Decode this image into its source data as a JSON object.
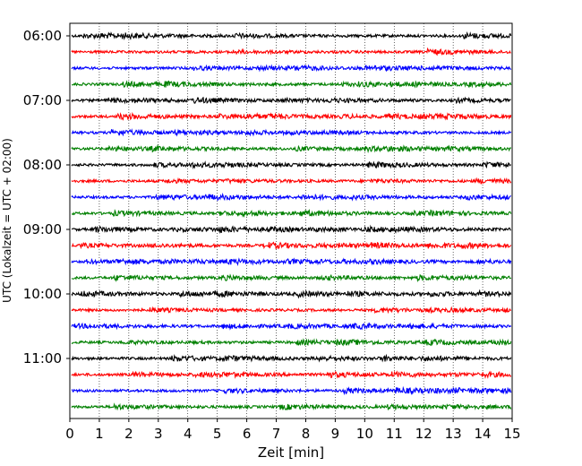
{
  "chart_data": {
    "type": "line",
    "title": "",
    "xlabel": "Zeit  [min]",
    "ylabel": "UTC (Lokalzeit = UTC + 02:00)",
    "xlim": [
      0,
      15
    ],
    "xticks": [
      0,
      1,
      2,
      3,
      4,
      5,
      6,
      7,
      8,
      9,
      10,
      11,
      12,
      13,
      14,
      15
    ],
    "yticks": [
      {
        "label": "06:00",
        "row": 0
      },
      {
        "label": "07:00",
        "row": 4
      },
      {
        "label": "08:00",
        "row": 8
      },
      {
        "label": "09:00",
        "row": 12
      },
      {
        "label": "10:00",
        "row": 16
      },
      {
        "label": "11:00",
        "row": 20
      }
    ],
    "grid": "vertical dotted lines at each minute",
    "trace_interval_minutes": 15,
    "first_trace_utc": "06:00",
    "trace_colors": [
      "#000000",
      "#ff0000",
      "#0000ff",
      "#008000"
    ],
    "series": [
      {
        "start": "06:00",
        "color": "#000000"
      },
      {
        "start": "06:15",
        "color": "#ff0000"
      },
      {
        "start": "06:30",
        "color": "#0000ff"
      },
      {
        "start": "06:45",
        "color": "#008000"
      },
      {
        "start": "07:00",
        "color": "#000000"
      },
      {
        "start": "07:15",
        "color": "#ff0000"
      },
      {
        "start": "07:30",
        "color": "#0000ff"
      },
      {
        "start": "07:45",
        "color": "#008000"
      },
      {
        "start": "08:00",
        "color": "#000000"
      },
      {
        "start": "08:15",
        "color": "#ff0000"
      },
      {
        "start": "08:30",
        "color": "#0000ff"
      },
      {
        "start": "08:45",
        "color": "#008000"
      },
      {
        "start": "09:00",
        "color": "#000000"
      },
      {
        "start": "09:15",
        "color": "#ff0000"
      },
      {
        "start": "09:30",
        "color": "#0000ff"
      },
      {
        "start": "09:45",
        "color": "#008000"
      },
      {
        "start": "10:00",
        "color": "#000000"
      },
      {
        "start": "10:15",
        "color": "#ff0000"
      },
      {
        "start": "10:30",
        "color": "#0000ff"
      },
      {
        "start": "10:45",
        "color": "#008000"
      },
      {
        "start": "11:00",
        "color": "#000000"
      },
      {
        "start": "11:15",
        "color": "#ff0000"
      },
      {
        "start": "11:30",
        "color": "#0000ff"
      },
      {
        "start": "11:45",
        "color": "#008000"
      }
    ]
  }
}
